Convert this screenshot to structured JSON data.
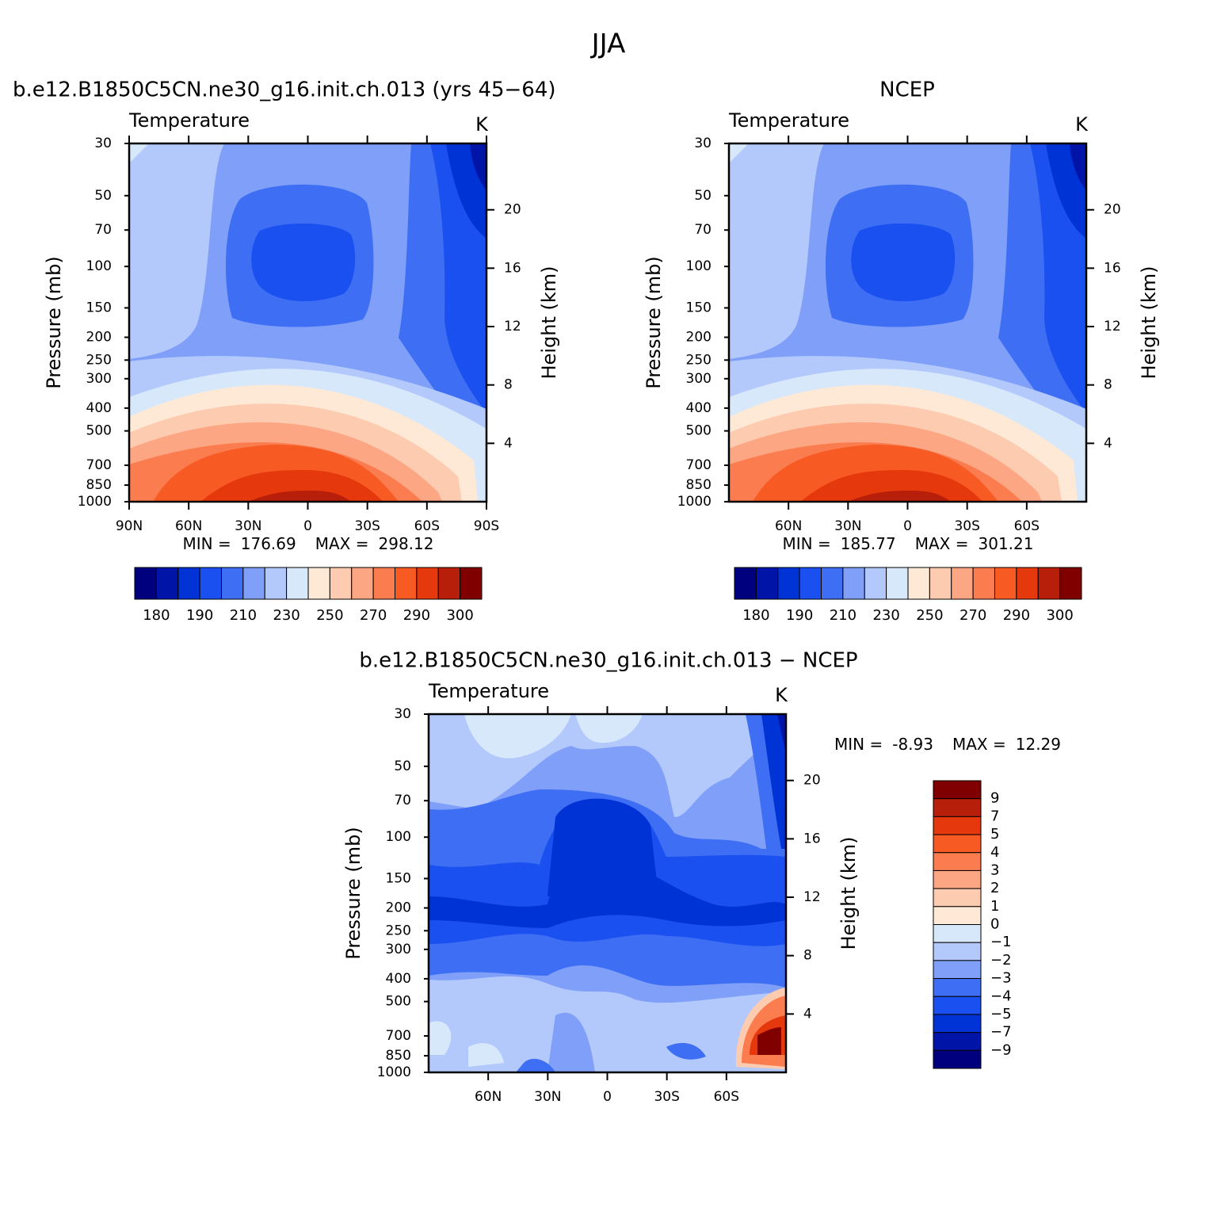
{
  "title": "JJA",
  "chart_data": [
    {
      "type": "contour",
      "title": "b.e12.B1850C5CN.ne30_g16.init.ch.013 (yrs 45−64)",
      "subtitle": "Temperature",
      "units": "K",
      "y_label": "Pressure (mb)",
      "y2_label": "Height (km)",
      "log_y": true,
      "ylim": [
        1000,
        30
      ],
      "yticks": [
        30,
        50,
        70,
        100,
        150,
        200,
        250,
        300,
        400,
        500,
        700,
        850,
        1000
      ],
      "y2ticks": [
        4,
        8,
        12,
        16,
        20
      ],
      "xlim": [
        90,
        -90
      ],
      "xticks": [
        {
          "value": 90,
          "label": "90N"
        },
        {
          "value": 60,
          "label": "60N"
        },
        {
          "value": 30,
          "label": "30N"
        },
        0,
        {
          "value": -30,
          "label": "30S"
        },
        {
          "value": -60,
          "label": "60S"
        },
        {
          "value": -90,
          "label": "90S"
        }
      ],
      "min_label": "MIN =",
      "min": 176.69,
      "max_label": "MAX =",
      "max": 298.12,
      "colorbar": {
        "orientation": "horizontal",
        "colors": [
          "#00007f",
          "#0015a8",
          "#0033d6",
          "#1a4ff0",
          "#3d6ef3",
          "#7f9ff9",
          "#b3c9fb",
          "#d8e8fb",
          "#fde9d6",
          "#fdcbb0",
          "#fca684",
          "#fb7d4f",
          "#f85a24",
          "#e5380c",
          "#b81f0a",
          "#800000"
        ],
        "labels": [
          180,
          190,
          210,
          230,
          250,
          270,
          290,
          300
        ]
      }
    },
    {
      "type": "contour",
      "title": "NCEP",
      "subtitle": "Temperature",
      "units": "K",
      "y_label": "Pressure (mb)",
      "y2_label": "Height (km)",
      "log_y": true,
      "ylim": [
        1000,
        30
      ],
      "yticks": [
        30,
        50,
        70,
        100,
        150,
        200,
        250,
        300,
        400,
        500,
        700,
        850,
        1000
      ],
      "y2ticks": [
        4,
        8,
        12,
        16,
        20
      ],
      "xlim": [
        90,
        -90
      ],
      "xticks": [
        {
          "value": 60,
          "label": "60N"
        },
        {
          "value": 30,
          "label": "30N"
        },
        0,
        {
          "value": -30,
          "label": "30S"
        },
        {
          "value": -60,
          "label": "60S"
        }
      ],
      "min_label": "MIN =",
      "min": 185.77,
      "max_label": "MAX =",
      "max": 301.21,
      "colorbar": {
        "orientation": "horizontal",
        "colors": [
          "#00007f",
          "#0015a8",
          "#0033d6",
          "#1a4ff0",
          "#3d6ef3",
          "#7f9ff9",
          "#b3c9fb",
          "#d8e8fb",
          "#fde9d6",
          "#fdcbb0",
          "#fca684",
          "#fb7d4f",
          "#f85a24",
          "#e5380c",
          "#b81f0a",
          "#800000"
        ],
        "labels": [
          180,
          190,
          210,
          230,
          250,
          270,
          290,
          300
        ]
      }
    },
    {
      "type": "contour",
      "title": "b.e12.B1850C5CN.ne30_g16.init.ch.013 − NCEP",
      "subtitle": "Temperature",
      "units": "K",
      "y_label": "Pressure (mb)",
      "y2_label": "Height (km)",
      "log_y": true,
      "ylim": [
        1000,
        30
      ],
      "yticks": [
        30,
        50,
        70,
        100,
        150,
        200,
        250,
        300,
        400,
        500,
        700,
        850,
        1000
      ],
      "y2ticks": [
        4,
        8,
        12,
        16,
        20
      ],
      "xlim": [
        90,
        -90
      ],
      "xticks": [
        {
          "value": 60,
          "label": "60N"
        },
        {
          "value": 30,
          "label": "30N"
        },
        0,
        {
          "value": -30,
          "label": "30S"
        },
        {
          "value": -60,
          "label": "60S"
        }
      ],
      "min_label": "MIN =",
      "min": -8.93,
      "max_label": "MAX =",
      "max": 12.29,
      "colorbar": {
        "orientation": "vertical",
        "colors": [
          "#800000",
          "#b81f0a",
          "#e5380c",
          "#f85a24",
          "#fb7d4f",
          "#fca684",
          "#fdcbb0",
          "#fde9d6",
          "#d8e8fb",
          "#b3c9fb",
          "#7f9ff9",
          "#3d6ef3",
          "#1a4ff0",
          "#0033d6",
          "#0015a8",
          "#00007f"
        ],
        "labels": [
          9,
          7,
          5,
          4,
          3,
          2,
          1,
          0,
          {
            "value": -1,
            "label": "−1"
          },
          {
            "value": -2,
            "label": "−2"
          },
          {
            "value": -3,
            "label": "−3"
          },
          {
            "value": -4,
            "label": "−4"
          },
          {
            "value": -5,
            "label": "−5"
          },
          {
            "value": -7,
            "label": "−7"
          },
          {
            "value": -9,
            "label": "−9"
          }
        ]
      }
    }
  ]
}
